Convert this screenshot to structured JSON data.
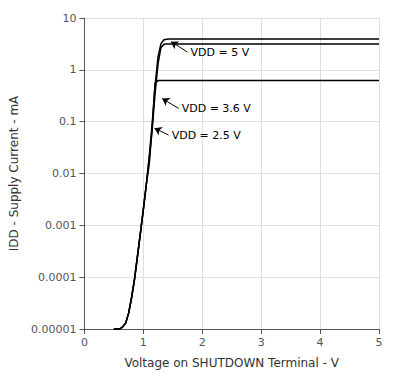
{
  "chart_data": {
    "type": "line",
    "xlabel": "Voltage on SHUTDOWN Terminal - V",
    "ylabel": "IDD - Supply Current - mA",
    "log": "y",
    "grid": true,
    "xlim": [
      0,
      5
    ],
    "ylim": [
      1e-05,
      10
    ],
    "xticks": [
      0,
      1,
      2,
      3,
      4,
      5
    ],
    "yticks": [
      1e-05,
      0.0001,
      0.001,
      0.01,
      0.1,
      1,
      10
    ],
    "series": [
      {
        "color": "#000000",
        "x": [
          0.5,
          0.6,
          0.65,
          0.7,
          0.75,
          0.8,
          0.85,
          0.9,
          0.95,
          1.0,
          1.05,
          1.1,
          1.15,
          1.2,
          1.25,
          1.3,
          1.35,
          1.4,
          1.45,
          1.5,
          1.55,
          5.0
        ],
        "values": [
          1e-05,
          1e-05,
          1.1e-05,
          1.3e-05,
          2e-05,
          4e-05,
          9e-05,
          0.00025,
          0.0007,
          0.002,
          0.006,
          0.02,
          0.09,
          0.5,
          1.8,
          3.2,
          3.8,
          3.9,
          3.95,
          3.95,
          3.95,
          3.95
        ]
      },
      {
        "color": "#000000",
        "x": [
          0.5,
          0.6,
          0.65,
          0.7,
          0.75,
          0.8,
          0.85,
          0.9,
          0.95,
          1.0,
          1.05,
          1.1,
          1.15,
          1.2,
          1.25,
          1.3,
          1.35,
          1.4,
          5.0
        ],
        "values": [
          1e-05,
          1e-05,
          1.1e-05,
          1.3e-05,
          2e-05,
          4e-05,
          9e-05,
          0.00025,
          0.0007,
          0.002,
          0.006,
          0.02,
          0.07,
          0.35,
          1.3,
          2.7,
          3.1,
          3.15,
          3.15
        ]
      },
      {
        "color": "#000000",
        "x": [
          0.5,
          0.6,
          0.65,
          0.7,
          0.75,
          0.8,
          0.85,
          0.9,
          0.95,
          1.0,
          1.05,
          1.1,
          1.15,
          1.2,
          1.25,
          5.0
        ],
        "values": [
          1e-05,
          1e-05,
          1.1e-05,
          1.3e-05,
          2e-05,
          4e-05,
          9e-05,
          0.00025,
          0.0007,
          0.002,
          0.006,
          0.015,
          0.075,
          0.55,
          0.62,
          0.62
        ]
      }
    ],
    "annotations": [
      {
        "text": "VDD = 5 V",
        "xy": [
          1.47,
          3.5
        ],
        "xytext": [
          1.75,
          2.2
        ]
      },
      {
        "text": "VDD = 3.6 V",
        "xy": [
          1.32,
          0.28
        ],
        "xytext": [
          1.6,
          0.18
        ]
      },
      {
        "text": "VDD = 2.5 V",
        "xy": [
          1.19,
          0.075
        ],
        "xytext": [
          1.43,
          0.055
        ]
      }
    ]
  }
}
